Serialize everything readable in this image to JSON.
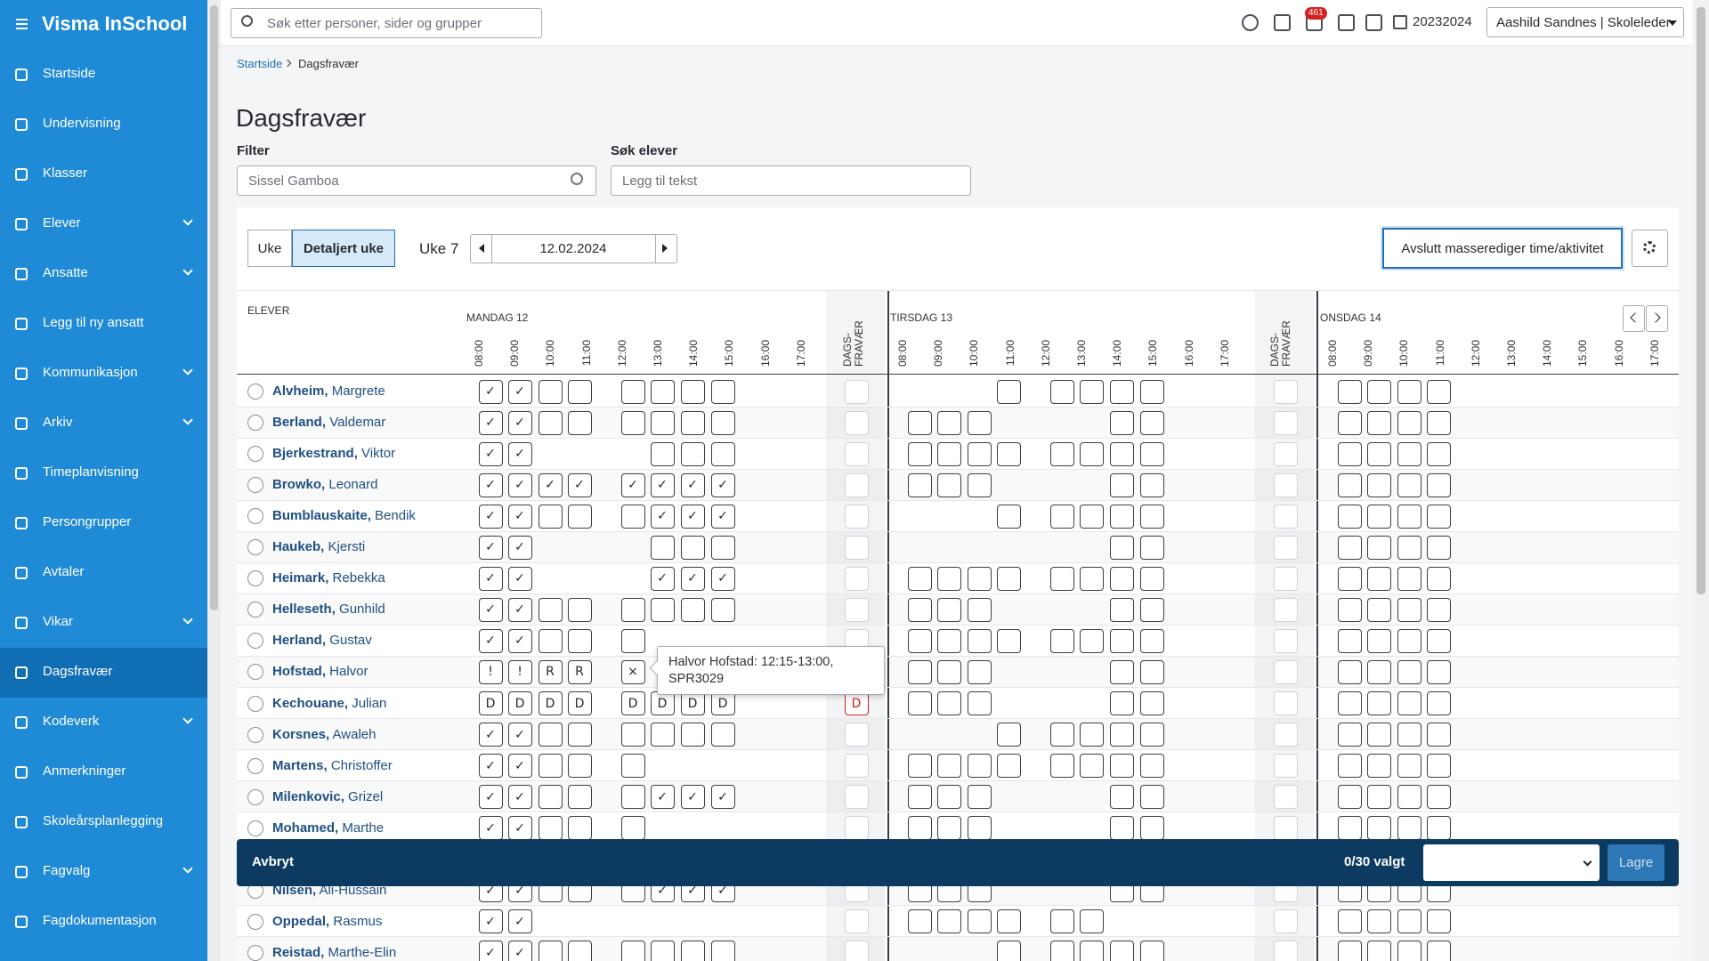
{
  "app": {
    "title": "Visma InSchool"
  },
  "sidebar": {
    "items": [
      {
        "label": "Startside"
      },
      {
        "label": "Undervisning"
      },
      {
        "label": "Klasser"
      },
      {
        "label": "Elever",
        "expandable": true
      },
      {
        "label": "Ansatte",
        "expandable": true
      },
      {
        "label": "Legg til ny ansatt"
      },
      {
        "label": "Kommunikasjon",
        "expandable": true
      },
      {
        "label": "Arkiv",
        "expandable": true
      },
      {
        "label": "Timeplanvisning"
      },
      {
        "label": "Persongrupper"
      },
      {
        "label": "Avtaler"
      },
      {
        "label": "Vikar",
        "expandable": true
      },
      {
        "label": "Dagsfravær"
      },
      {
        "label": "Kodeverk",
        "expandable": true
      },
      {
        "label": "Anmerkninger"
      },
      {
        "label": "Skoleårsplanlegging"
      },
      {
        "label": "Fagvalg",
        "expandable": true
      },
      {
        "label": "Fagdokumentasjon"
      }
    ],
    "active": 12
  },
  "topbar": {
    "search_placeholder": "Søk etter personer, sider og grupper",
    "notifications": "461",
    "school_year": "20232024",
    "user": "Aashild Sandnes | Skoleleder"
  },
  "breadcrumb": {
    "home": "Startside",
    "current": "Dagsfravær"
  },
  "page": {
    "title": "Dagsfravær",
    "filter_label": "Filter",
    "filter_value": "Sissel Gamboa",
    "search_label": "Søk elever",
    "search_placeholder": "Legg til tekst"
  },
  "toolbar": {
    "views": [
      "Uke",
      "Detaljert uke"
    ],
    "active_view": 1,
    "week": "Uke 7",
    "date": "12.02.2024",
    "action": "Avslutt masserediger time/aktivitet"
  },
  "table": {
    "students_header": "ELEVER",
    "days": [
      "MANDAG 12",
      "TIRSDAG 13",
      "ONSDAG 14"
    ],
    "hours": [
      "08:00",
      "09:00",
      "10:00",
      "11:00",
      "12:00",
      "13:00",
      "14:00",
      "15:00",
      "16:00",
      "17:00"
    ],
    "absence_header": [
      "DAGS-",
      "FRAVÆR"
    ],
    "rows": [
      {
        "last": "Alvheim,",
        "first": "Margrete",
        "days": [
          [
            "✓",
            "✓",
            true,
            true,
            true,
            true,
            true,
            true
          ],
          [
            null,
            null,
            null,
            true,
            true,
            true,
            true,
            true
          ],
          [
            true,
            true,
            true,
            true
          ]
        ],
        "absence": [
          true,
          true
        ]
      },
      {
        "last": "Berland,",
        "first": "Valdemar",
        "days": [
          [
            "✓",
            "✓",
            true,
            true,
            true,
            true,
            true,
            true
          ],
          [
            true,
            true,
            true,
            null,
            null,
            null,
            true,
            true
          ],
          [
            true,
            true,
            true,
            true
          ]
        ],
        "absence": [
          true,
          true
        ]
      },
      {
        "last": "Bjerkestrand,",
        "first": "Viktor",
        "days": [
          [
            "✓",
            "✓",
            null,
            null,
            null,
            true,
            true,
            true
          ],
          [
            true,
            true,
            true,
            true,
            true,
            true,
            true,
            true
          ],
          [
            true,
            true,
            true,
            true
          ]
        ],
        "absence": [
          true,
          true
        ]
      },
      {
        "last": "Browko,",
        "first": "Leonard",
        "days": [
          [
            "✓",
            "✓",
            "✓",
            "✓",
            "✓",
            "✓",
            "✓",
            "✓"
          ],
          [
            true,
            true,
            true,
            null,
            null,
            null,
            true,
            true
          ],
          [
            true,
            true,
            true,
            true
          ]
        ],
        "absence": [
          true,
          true
        ]
      },
      {
        "last": "Bumblauskaite,",
        "first": "Bendik",
        "days": [
          [
            "✓",
            "✓",
            true,
            true,
            true,
            "✓",
            "✓",
            "✓"
          ],
          [
            null,
            null,
            null,
            true,
            true,
            true,
            true,
            true
          ],
          [
            true,
            true,
            true,
            true
          ]
        ],
        "absence": [
          true,
          true
        ]
      },
      {
        "last": "Haukeb,",
        "first": "Kjersti",
        "days": [
          [
            "✓",
            "✓",
            null,
            null,
            null,
            true,
            true,
            true
          ],
          [
            null,
            null,
            null,
            null,
            null,
            null,
            true,
            true
          ],
          [
            true,
            true,
            true,
            true
          ]
        ],
        "absence": [
          true,
          true
        ]
      },
      {
        "last": "Heimark,",
        "first": "Rebekka",
        "days": [
          [
            "✓",
            "✓",
            null,
            null,
            null,
            "✓",
            "✓",
            "✓"
          ],
          [
            true,
            true,
            true,
            true,
            true,
            true,
            true,
            true
          ],
          [
            true,
            true,
            true,
            true
          ]
        ],
        "absence": [
          true,
          true
        ]
      },
      {
        "last": "Helleseth,",
        "first": "Gunhild",
        "days": [
          [
            "✓",
            "✓",
            true,
            true,
            true,
            true,
            true,
            true
          ],
          [
            true,
            true,
            true,
            null,
            null,
            null,
            true,
            true
          ],
          [
            true,
            true,
            true,
            true
          ]
        ],
        "absence": [
          true,
          true
        ]
      },
      {
        "last": "Herland,",
        "first": "Gustav",
        "days": [
          [
            "✓",
            "✓",
            true,
            true,
            true,
            null,
            null,
            null
          ],
          [
            true,
            true,
            true,
            true,
            true,
            true,
            true,
            true
          ],
          [
            true,
            true,
            true,
            true
          ]
        ],
        "absence": [
          true,
          true
        ]
      },
      {
        "last": "Hofstad,",
        "first": "Halvor",
        "days": [
          [
            "!",
            "!",
            "R",
            "R",
            "×",
            null,
            null,
            null
          ],
          [
            true,
            true,
            true,
            null,
            null,
            null,
            true,
            true
          ],
          [
            true,
            true,
            true,
            true
          ]
        ],
        "absence": [
          true,
          true
        ]
      },
      {
        "last": "Kechouane,",
        "first": "Julian",
        "days": [
          [
            "D",
            "D",
            "D",
            "D",
            "D",
            "D",
            "D",
            "D"
          ],
          [
            true,
            true,
            true,
            null,
            null,
            null,
            true,
            true
          ],
          [
            true,
            true,
            true,
            true
          ]
        ],
        "absence": [
          "D",
          true
        ]
      },
      {
        "last": "Korsnes,",
        "first": "Awaleh",
        "days": [
          [
            "✓",
            "✓",
            true,
            true,
            true,
            true,
            true,
            true
          ],
          [
            null,
            null,
            null,
            true,
            true,
            true,
            true,
            true
          ],
          [
            true,
            true,
            true,
            true
          ]
        ],
        "absence": [
          true,
          true
        ]
      },
      {
        "last": "Martens,",
        "first": "Christoffer",
        "days": [
          [
            "✓",
            "✓",
            true,
            true,
            true,
            null,
            null,
            null
          ],
          [
            true,
            true,
            true,
            true,
            true,
            true,
            true,
            true
          ],
          [
            true,
            true,
            true,
            true
          ]
        ],
        "absence": [
          true,
          true
        ]
      },
      {
        "last": "Milenkovic,",
        "first": "Grizel",
        "days": [
          [
            "✓",
            "✓",
            true,
            true,
            true,
            "✓",
            "✓",
            "✓"
          ],
          [
            true,
            true,
            true,
            null,
            null,
            null,
            true,
            true
          ],
          [
            true,
            true,
            true,
            true
          ]
        ],
        "absence": [
          true,
          true
        ]
      },
      {
        "last": "Mohamed,",
        "first": "Marthe",
        "days": [
          [
            "✓",
            "✓",
            true,
            true,
            true,
            null,
            null,
            null
          ],
          [
            true,
            true,
            true,
            null,
            null,
            null,
            true,
            true
          ],
          [
            true,
            true,
            true,
            true
          ]
        ],
        "absence": [
          true,
          true
        ]
      },
      {
        "last": "Nilsen,",
        "first": "Ali-Hussain",
        "days": [
          [
            "✓",
            "✓",
            true,
            true,
            true,
            "✓",
            "✓",
            "✓"
          ],
          [
            true,
            true,
            true,
            null,
            null,
            null,
            true,
            true
          ],
          [
            true,
            true,
            true,
            true
          ]
        ],
        "absence": [
          true,
          true
        ]
      },
      {
        "last": "Oppedal,",
        "first": "Rasmus",
        "days": [
          [
            "✓",
            "✓",
            null,
            null,
            null,
            null,
            null,
            null
          ],
          [
            true,
            true,
            true,
            true,
            true,
            true,
            null,
            null
          ],
          [
            true,
            true,
            true,
            true
          ]
        ],
        "absence": [
          true,
          true
        ]
      },
      {
        "last": "Reistad,",
        "first": "Marthe-Elin",
        "days": [
          [
            "✓",
            "✓",
            true,
            true,
            true,
            true,
            true,
            true
          ],
          [
            null,
            null,
            null,
            true,
            true,
            true,
            true,
            true
          ],
          [
            true,
            true,
            true,
            true
          ]
        ],
        "absence": [
          true,
          true
        ]
      }
    ]
  },
  "tooltip": {
    "text": "Halvor Hofstad: 12:15-13:00, SPR3029"
  },
  "bottom_bar": {
    "cancel": "Avbryt",
    "selected": "0/30 valgt",
    "save": "Lagre"
  }
}
